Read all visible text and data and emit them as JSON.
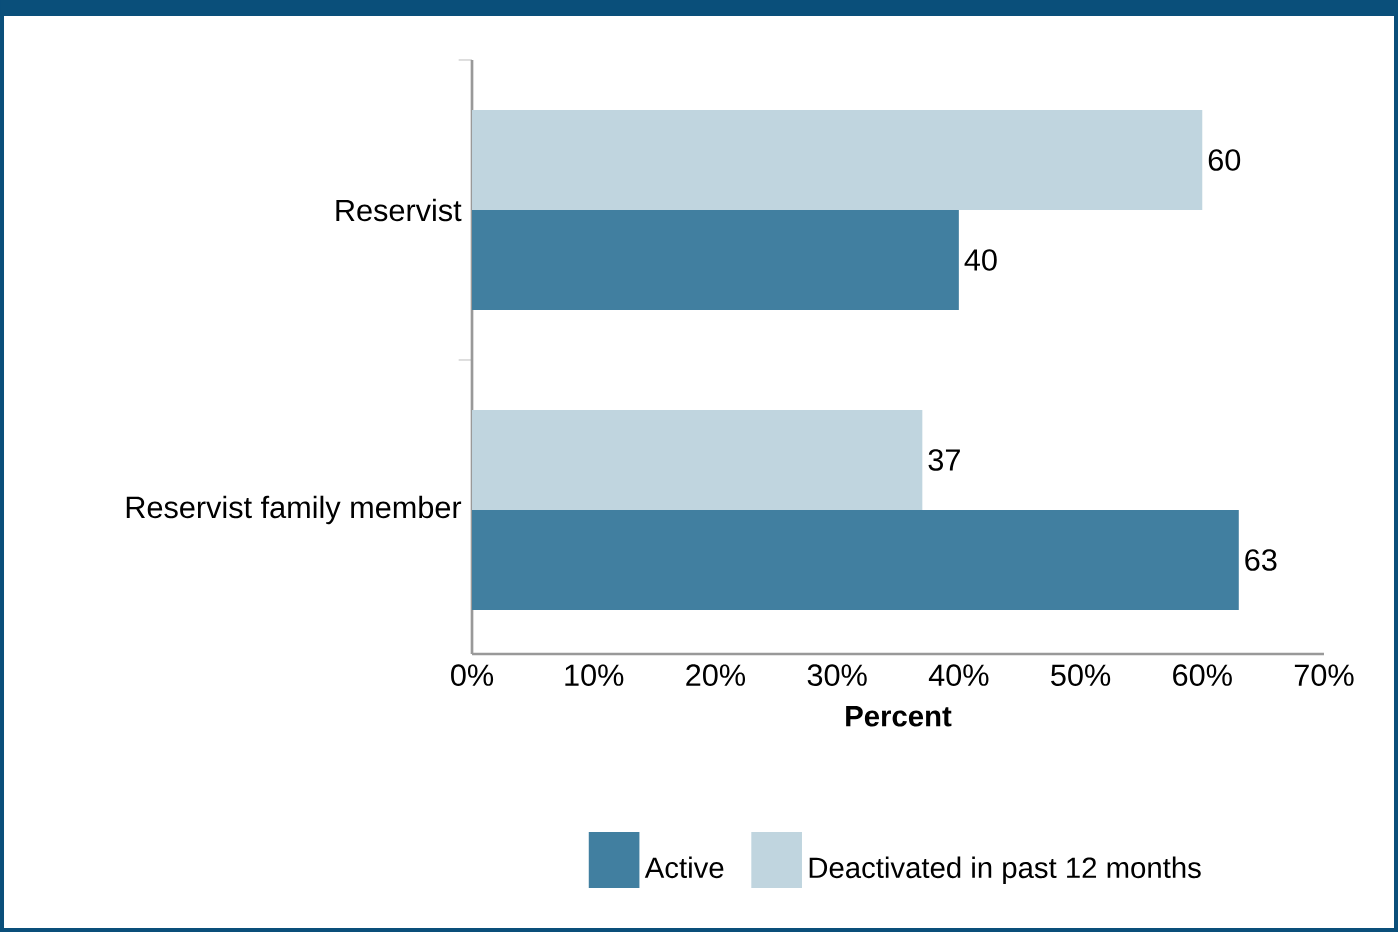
{
  "chart_data": {
    "type": "bar",
    "orientation": "horizontal",
    "xlabel": "Percent",
    "categories": [
      "Reservist",
      "Reservist family member"
    ],
    "series": [
      {
        "name": "Active",
        "color": "#417fa0",
        "values": [
          40,
          63
        ]
      },
      {
        "name": "Deactivated in past 12 months",
        "color": "#c0d5df",
        "values": [
          60,
          37
        ]
      }
    ],
    "xlim": [
      0,
      70
    ],
    "xticks": [
      {
        "value": 0,
        "label": "0%"
      },
      {
        "value": 10,
        "label": "10%"
      },
      {
        "value": 20,
        "label": "20%"
      },
      {
        "value": 30,
        "label": "30%"
      },
      {
        "value": 40,
        "label": "40%"
      },
      {
        "value": 50,
        "label": "50%"
      },
      {
        "value": 60,
        "label": "60%"
      },
      {
        "value": 70,
        "label": "70%"
      }
    ],
    "data_labels": true,
    "legend": "bottom",
    "grid": false
  }
}
